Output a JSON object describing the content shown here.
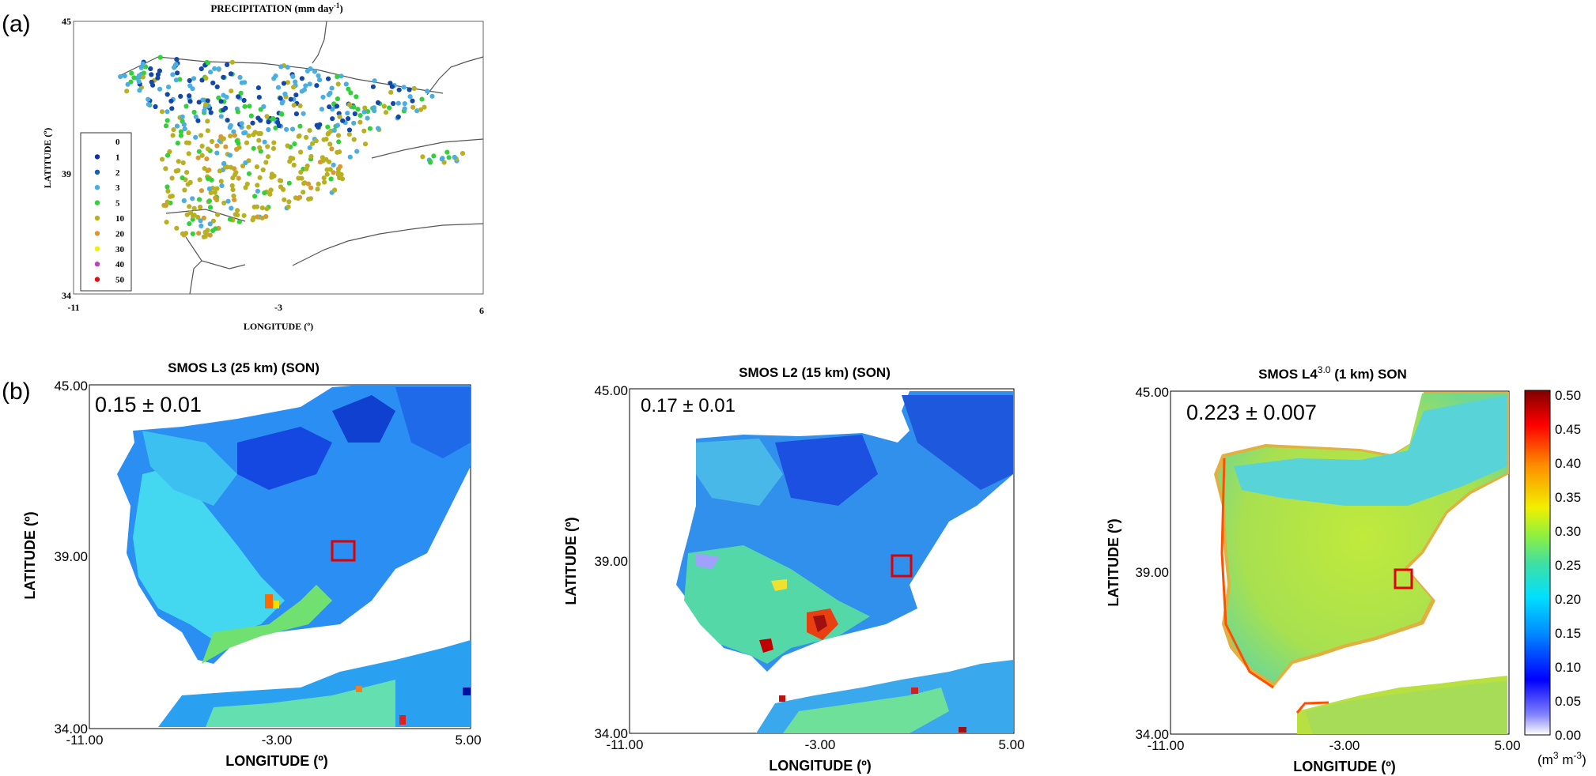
{
  "panel_a": {
    "letter": "(a)",
    "title": "PRECIPITATION (mm day",
    "title_sup": "-1",
    "title_close": ")",
    "xlabel": "LONGITUDE (º)",
    "ylabel": "LATITUDE (º)",
    "x_ticks": [
      "-11",
      "-3",
      "6"
    ],
    "y_ticks": [
      "45",
      "39",
      "34"
    ],
    "legend": [
      {
        "label": "0",
        "color": "#ffffff"
      },
      {
        "label": "1",
        "color": "#1230a8"
      },
      {
        "label": "2",
        "color": "#1560b0"
      },
      {
        "label": "3",
        "color": "#4aaee0"
      },
      {
        "label": "5",
        "color": "#34d03a"
      },
      {
        "label": "10",
        "color": "#b8b020"
      },
      {
        "label": "20",
        "color": "#d89a30"
      },
      {
        "label": "30",
        "color": "#f0f000"
      },
      {
        "label": "40",
        "color": "#c040c0"
      },
      {
        "label": "50",
        "color": "#e01010"
      }
    ]
  },
  "panel_b": {
    "letter": "(b)",
    "maps": [
      {
        "title": "SMOS L3 (25 km) (SON)",
        "stat": "0.15 ± 0.01"
      },
      {
        "title": "SMOS L2 (15 km) (SON)",
        "stat": "0.17 ± 0.01"
      },
      {
        "title_pre": "SMOS L4",
        "title_sup": "3.0",
        "title_post": " (1 km) SON",
        "stat": "0.223 ± 0.007"
      }
    ],
    "xlabel": "LONGITUDE (º)",
    "ylabel": "LATITUDE (º)",
    "x_ticks": [
      "-11.00",
      "-3.00",
      "5.00"
    ],
    "y_ticks": [
      "45.00",
      "39.00",
      "34.00"
    ],
    "colorbar": {
      "ticks": [
        "0.50",
        "0.45",
        "0.40",
        "0.35",
        "0.30",
        "0.25",
        "0.20",
        "0.15",
        "0.10",
        "0.05",
        "0.00"
      ],
      "unit": "(m",
      "unit_sup1": "3",
      "unit_mid": " m",
      "unit_sup2": "-3",
      "unit_close": ")"
    }
  }
}
